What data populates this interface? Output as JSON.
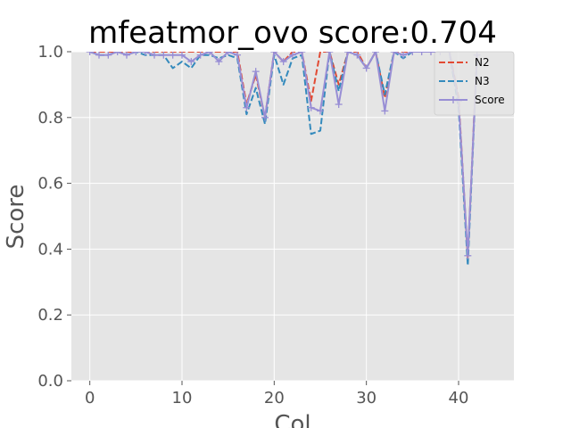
{
  "chart_data": {
    "type": "line",
    "title": "mfeatmor_ovo score:0.704",
    "xlabel": "Col",
    "ylabel": "Score",
    "xlim": [
      -2,
      46
    ],
    "ylim": [
      0,
      1.0
    ],
    "xticks": [
      0,
      10,
      20,
      30,
      40
    ],
    "yticks": [
      0.0,
      0.2,
      0.4,
      0.6,
      0.8,
      1.0
    ],
    "xtick_labels": [
      "0",
      "10",
      "20",
      "30",
      "40"
    ],
    "ytick_labels": [
      "0.0",
      "0.2",
      "0.4",
      "0.6",
      "0.8",
      "1.0"
    ],
    "grid": true,
    "legend_position": "top-right",
    "x": [
      0,
      1,
      2,
      3,
      4,
      5,
      6,
      7,
      8,
      9,
      10,
      11,
      12,
      13,
      14,
      15,
      16,
      17,
      18,
      19,
      20,
      21,
      22,
      23,
      24,
      25,
      26,
      27,
      28,
      29,
      30,
      31,
      32,
      33,
      34,
      35,
      36,
      37,
      38,
      39,
      40,
      41,
      42
    ],
    "series": [
      {
        "name": "N2",
        "color": "#e24a33",
        "dash": "dashed",
        "marker": "none",
        "values": [
          1.0,
          1.0,
          1.0,
          1.0,
          1.0,
          1.0,
          1.0,
          1.0,
          1.0,
          1.0,
          1.0,
          1.0,
          1.0,
          1.0,
          1.0,
          1.0,
          1.0,
          0.84,
          0.93,
          0.8,
          1.0,
          0.97,
          1.0,
          1.0,
          0.85,
          1.0,
          1.0,
          0.9,
          1.0,
          1.0,
          0.95,
          1.0,
          0.86,
          1.0,
          1.0,
          1.0,
          1.0,
          1.0,
          1.0,
          1.0,
          0.86,
          0.37,
          1.0
        ]
      },
      {
        "name": "N3",
        "color": "#348abd",
        "dash": "dashed",
        "marker": "none",
        "values": [
          1.0,
          0.99,
          0.99,
          1.0,
          0.99,
          1.0,
          0.99,
          0.99,
          0.99,
          0.95,
          0.97,
          0.95,
          0.99,
          0.99,
          0.98,
          0.99,
          0.98,
          0.81,
          0.89,
          0.78,
          0.99,
          0.9,
          0.98,
          0.99,
          0.75,
          0.76,
          1.0,
          0.88,
          1.0,
          0.99,
          0.95,
          1.0,
          0.87,
          1.0,
          0.98,
          1.0,
          1.0,
          1.0,
          1.0,
          1.0,
          0.83,
          0.35,
          0.99
        ]
      },
      {
        "name": "Score",
        "color": "#988ed5",
        "dash": "solid",
        "marker": "plus",
        "values": [
          1.0,
          0.99,
          0.99,
          1.0,
          0.99,
          1.0,
          1.0,
          0.99,
          0.99,
          0.99,
          0.99,
          0.97,
          0.99,
          1.0,
          0.97,
          1.0,
          0.99,
          0.83,
          0.94,
          0.8,
          1.0,
          0.97,
          0.99,
          1.0,
          0.83,
          0.82,
          1.0,
          0.84,
          1.0,
          0.99,
          0.95,
          1.0,
          0.82,
          1.0,
          0.99,
          1.0,
          1.0,
          1.0,
          1.0,
          1.0,
          0.85,
          0.38,
          0.99
        ]
      }
    ]
  }
}
